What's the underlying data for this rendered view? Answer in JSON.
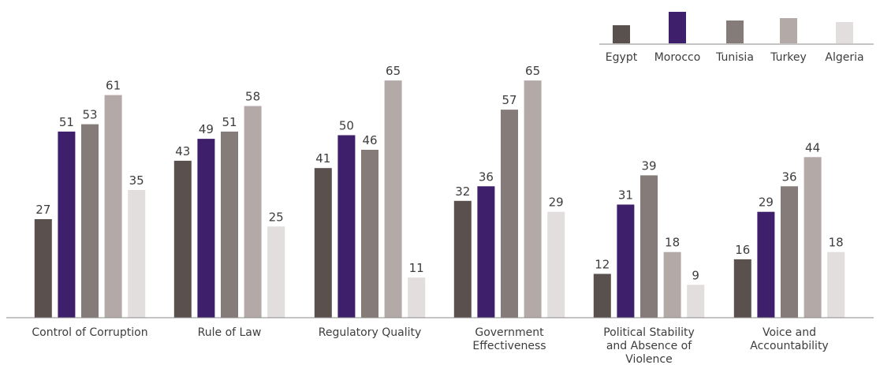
{
  "chart_data": {
    "type": "bar",
    "title": "",
    "xlabel": "",
    "ylabel": "",
    "ylim": [
      0,
      70
    ],
    "grid": false,
    "legend_position": "top-right",
    "categories": [
      [
        "Control of Corruption"
      ],
      [
        "Rule of Law"
      ],
      [
        "Regulatory Quality"
      ],
      [
        "Government",
        "Effectiveness"
      ],
      [
        "Political Stability",
        "and Absence of",
        "Violence"
      ],
      [
        "Voice and",
        "Accountability"
      ]
    ],
    "series": [
      {
        "name": "Egypt",
        "color": "#5a504d",
        "values": [
          27,
          43,
          41,
          32,
          12,
          16
        ]
      },
      {
        "name": "Morocco",
        "color": "#3d1f6b",
        "values": [
          51,
          49,
          50,
          36,
          31,
          29
        ]
      },
      {
        "name": "Tunisia",
        "color": "#857b78",
        "values": [
          53,
          51,
          46,
          57,
          39,
          36
        ]
      },
      {
        "name": "Turkey",
        "color": "#b3a9a7",
        "values": [
          61,
          58,
          65,
          65,
          18,
          44
        ]
      },
      {
        "name": "Algeria",
        "color": "#e2dedd",
        "values": [
          35,
          25,
          11,
          29,
          9,
          18
        ]
      }
    ]
  }
}
